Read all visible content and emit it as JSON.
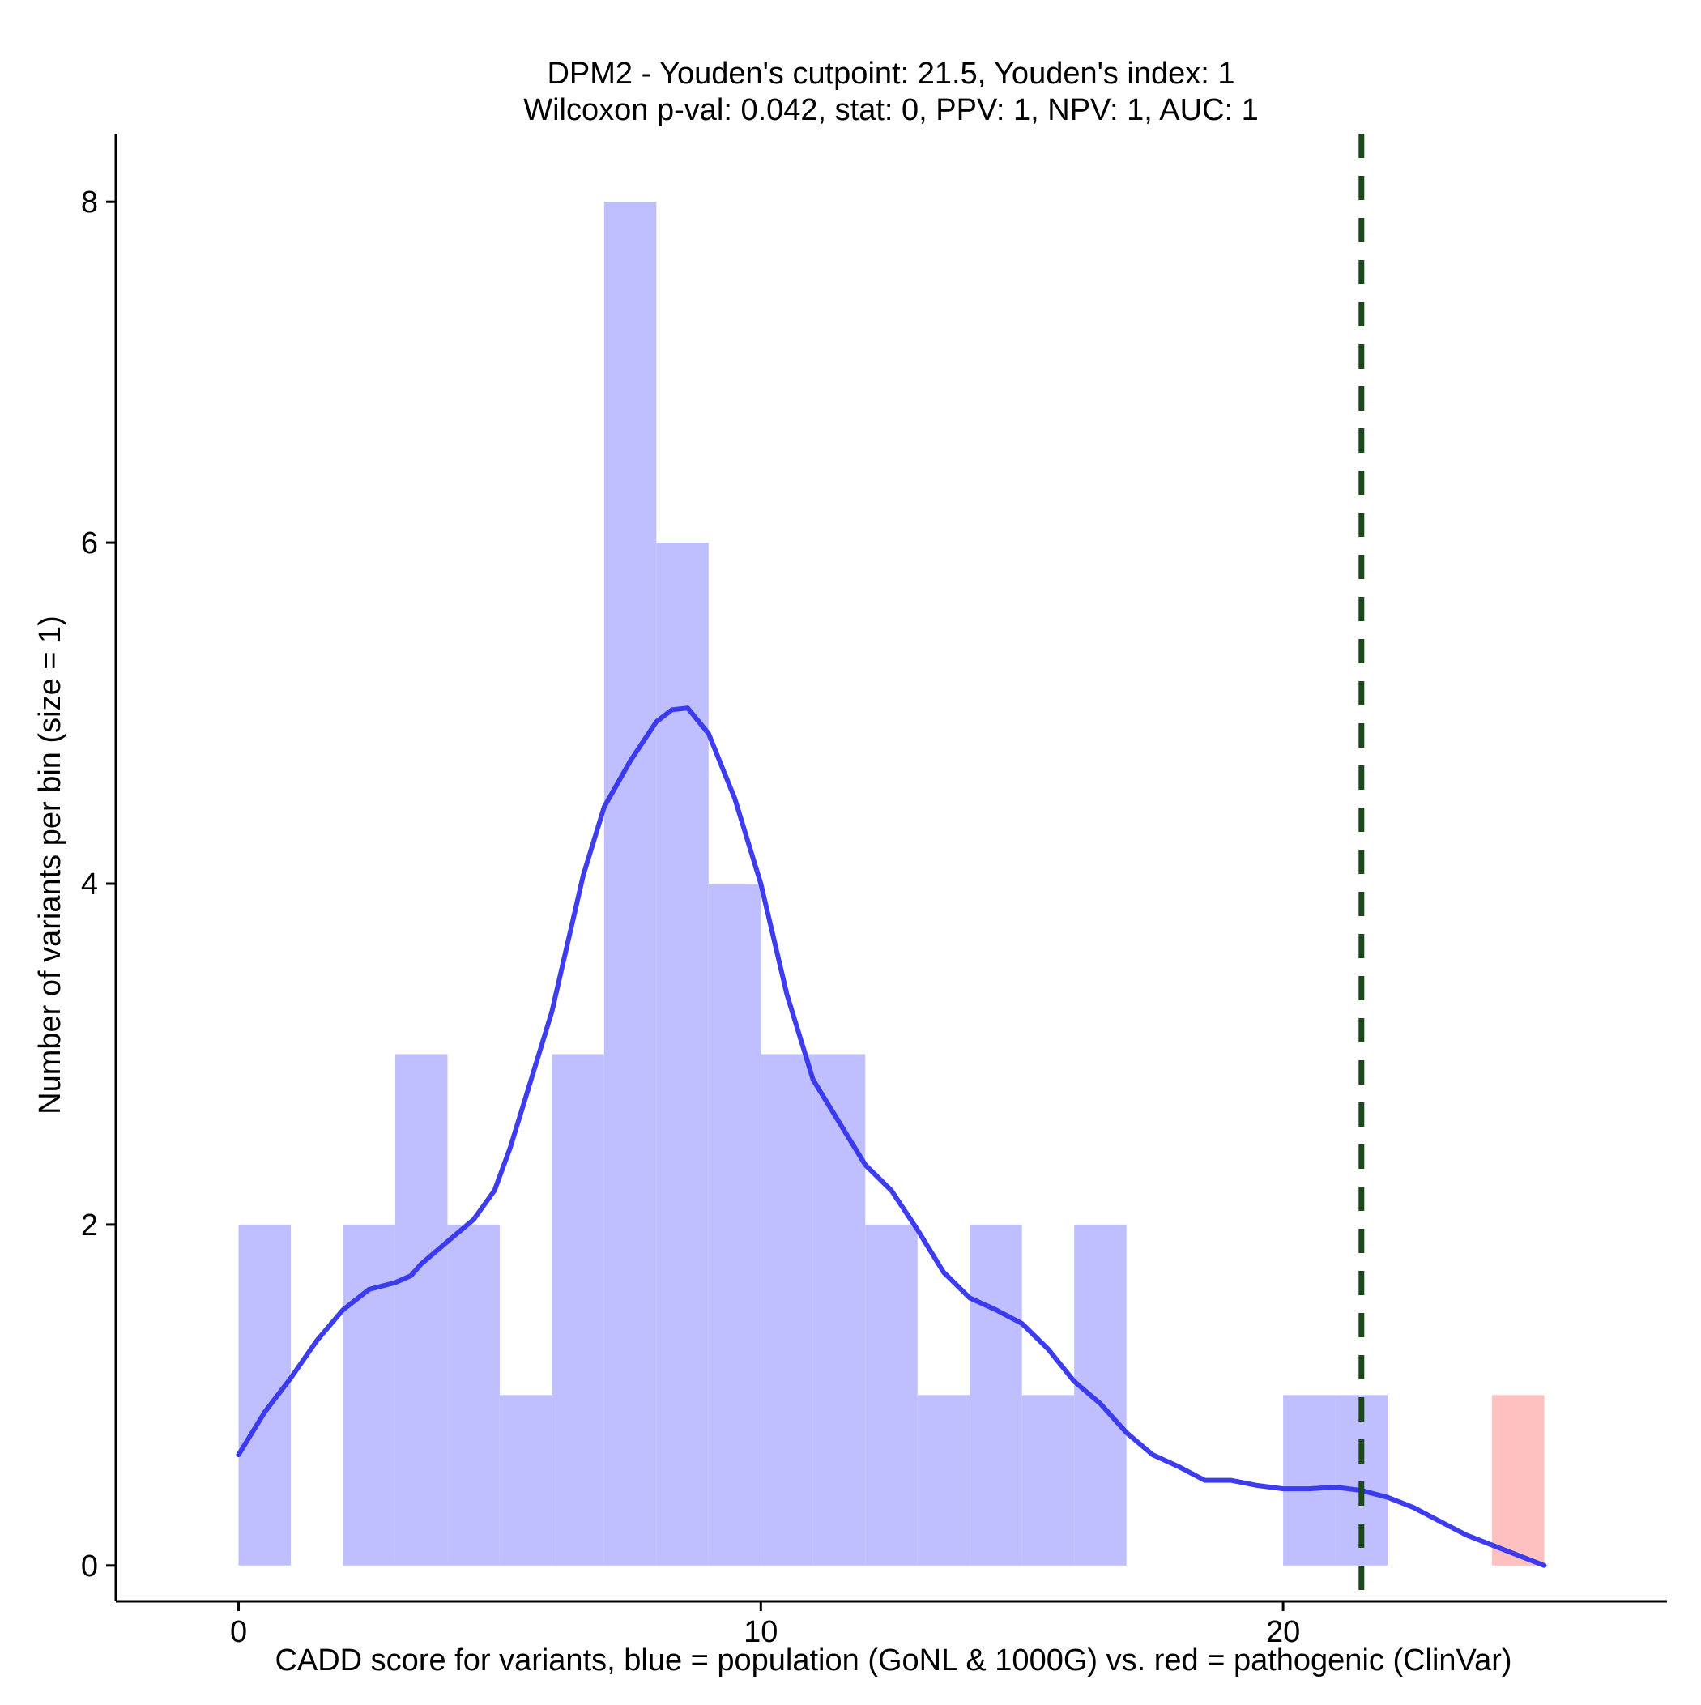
{
  "chart_data": {
    "type": "bar",
    "title_line1": "DPM2 - Youden's cutpoint: 21.5, Youden's index: 1",
    "title_line2": "Wilcoxon p-val: 0.042, stat: 0, PPV: 1, NPV: 1, AUC: 1",
    "xlabel": "CADD score for variants, blue = population (GoNL & 1000G) vs. red = pathogenic (ClinVar)",
    "ylabel": "Number of variants per bin (size = 1)",
    "xlim": [
      -2.35,
      27.35
    ],
    "ylim": [
      -0.21,
      8.4
    ],
    "x_ticks": [
      0,
      10,
      20
    ],
    "y_ticks": [
      0,
      2,
      4,
      6,
      8
    ],
    "bin_width": 1,
    "series": [
      {
        "color": "#bfbfff",
        "bins": [
          {
            "x0": 0,
            "count": 2
          },
          {
            "x0": 2,
            "count": 2
          },
          {
            "x0": 3,
            "count": 3
          },
          {
            "x0": 4,
            "count": 2
          },
          {
            "x0": 5,
            "count": 1
          },
          {
            "x0": 6,
            "count": 3
          },
          {
            "x0": 7,
            "count": 8
          },
          {
            "x0": 8,
            "count": 6
          },
          {
            "x0": 9,
            "count": 4
          },
          {
            "x0": 10,
            "count": 3
          },
          {
            "x0": 11,
            "count": 3
          },
          {
            "x0": 12,
            "count": 2
          },
          {
            "x0": 13,
            "count": 1
          },
          {
            "x0": 14,
            "count": 2
          },
          {
            "x0": 15,
            "count": 1
          },
          {
            "x0": 16,
            "count": 2
          },
          {
            "x0": 20,
            "count": 1
          },
          {
            "x0": 21,
            "count": 1
          }
        ]
      },
      {
        "color": "#ffc0c0",
        "bins": [
          {
            "x0": 24,
            "count": 1
          }
        ]
      }
    ],
    "density_curve": {
      "color": "#3333ee",
      "points": [
        [
          0,
          0.65
        ],
        [
          0.5,
          0.9
        ],
        [
          1,
          1.1
        ],
        [
          1.5,
          1.32
        ],
        [
          2,
          1.5
        ],
        [
          2.5,
          1.62
        ],
        [
          3,
          1.66
        ],
        [
          3.3,
          1.7
        ],
        [
          3.5,
          1.77
        ],
        [
          4,
          1.9
        ],
        [
          4.5,
          2.03
        ],
        [
          4.9,
          2.2
        ],
        [
          5.2,
          2.45
        ],
        [
          5.5,
          2.75
        ],
        [
          6,
          3.25
        ],
        [
          6.3,
          3.65
        ],
        [
          6.6,
          4.05
        ],
        [
          7,
          4.45
        ],
        [
          7.5,
          4.72
        ],
        [
          8,
          4.95
        ],
        [
          8.3,
          5.02
        ],
        [
          8.6,
          5.03
        ],
        [
          9,
          4.88
        ],
        [
          9.5,
          4.5
        ],
        [
          10,
          4.0
        ],
        [
          10.5,
          3.35
        ],
        [
          11,
          2.85
        ],
        [
          11.5,
          2.6
        ],
        [
          12,
          2.35
        ],
        [
          12.5,
          2.2
        ],
        [
          13,
          1.97
        ],
        [
          13.5,
          1.72
        ],
        [
          14,
          1.57
        ],
        [
          14.5,
          1.5
        ],
        [
          15,
          1.42
        ],
        [
          15.5,
          1.27
        ],
        [
          16,
          1.08
        ],
        [
          16.5,
          0.95
        ],
        [
          17,
          0.78
        ],
        [
          17.5,
          0.65
        ],
        [
          18,
          0.58
        ],
        [
          18.5,
          0.5
        ],
        [
          19,
          0.5
        ],
        [
          19.5,
          0.47
        ],
        [
          20,
          0.45
        ],
        [
          20.5,
          0.45
        ],
        [
          21,
          0.46
        ],
        [
          21.5,
          0.44
        ],
        [
          22,
          0.4
        ],
        [
          22.5,
          0.34
        ],
        [
          23,
          0.26
        ],
        [
          23.5,
          0.18
        ],
        [
          24,
          0.12
        ],
        [
          24.5,
          0.06
        ],
        [
          25,
          0.0
        ]
      ]
    },
    "cutpoint": {
      "x": 21.5,
      "color": "#1a4a1a",
      "style": "dashed"
    },
    "grid": false,
    "legend": "none"
  }
}
